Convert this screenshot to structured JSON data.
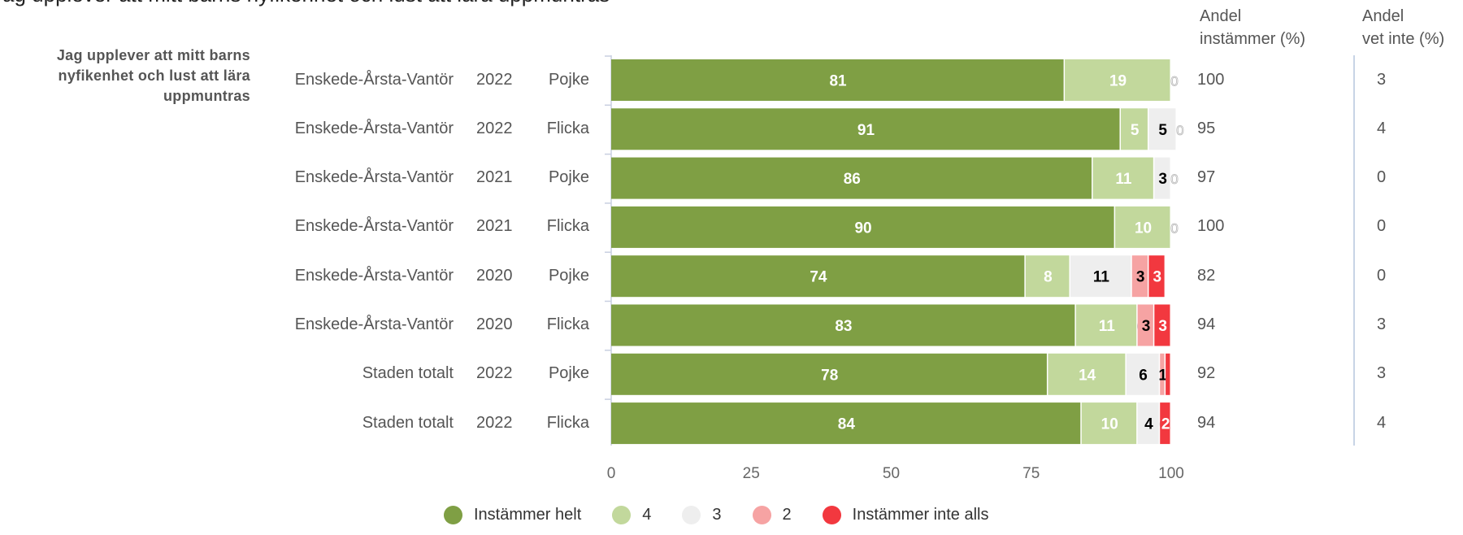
{
  "title": "Jag upplever att mitt barns nyfikenhet och lust att lära uppmuntras",
  "question_label": "Jag upplever att mitt barns nyfikenhet och lust att lära uppmuntras",
  "headers": {
    "andel_instammer": [
      "Andel",
      "instämmer (%)"
    ],
    "andel_vet_inte": [
      "Andel",
      "vet inte (%)"
    ]
  },
  "colors": {
    "instammer_helt": "#7f9f44",
    "4": "#c2d89c",
    "3": "#eeeeee",
    "2": "#f6a3a3",
    "instammer_inte_alls": "#f2383f"
  },
  "chart_data": {
    "type": "bar",
    "orientation": "horizontal",
    "stacked": true,
    "xlim": [
      0,
      100
    ],
    "xticks": [
      "0",
      "25",
      "50",
      "75",
      "100"
    ],
    "legend_position": "bottom",
    "series_names": [
      "Instämmer helt",
      "4",
      "3",
      "2",
      "Instämmer inte alls"
    ],
    "rows": [
      {
        "area": "Enskede-Årsta-Vantör",
        "year": "2022",
        "gender": "Pojke",
        "values": [
          81,
          19,
          0,
          0,
          0
        ],
        "labels": [
          "81",
          "19",
          "0",
          "",
          ""
        ],
        "andel_instammer": "100",
        "andel_vet_inte": "3"
      },
      {
        "area": "Enskede-Årsta-Vantör",
        "year": "2022",
        "gender": "Flicka",
        "values": [
          91,
          5,
          5,
          0,
          0
        ],
        "labels": [
          "91",
          "5",
          "5",
          "0",
          ""
        ],
        "andel_instammer": "95",
        "andel_vet_inte": "4"
      },
      {
        "area": "Enskede-Årsta-Vantör",
        "year": "2021",
        "gender": "Pojke",
        "values": [
          86,
          11,
          3,
          0,
          0
        ],
        "labels": [
          "86",
          "11",
          "3",
          "0",
          ""
        ],
        "andel_instammer": "97",
        "andel_vet_inte": "0"
      },
      {
        "area": "Enskede-Årsta-Vantör",
        "year": "2021",
        "gender": "Flicka",
        "values": [
          90,
          10,
          0,
          0,
          0
        ],
        "labels": [
          "90",
          "10",
          "0",
          "",
          ""
        ],
        "andel_instammer": "100",
        "andel_vet_inte": "0"
      },
      {
        "area": "Enskede-Årsta-Vantör",
        "year": "2020",
        "gender": "Pojke",
        "values": [
          74,
          8,
          11,
          3,
          3
        ],
        "labels": [
          "74",
          "8",
          "11",
          "3",
          "3"
        ],
        "andel_instammer": "82",
        "andel_vet_inte": "0"
      },
      {
        "area": "Enskede-Årsta-Vantör",
        "year": "2020",
        "gender": "Flicka",
        "values": [
          83,
          11,
          0,
          3,
          3
        ],
        "labels": [
          "83",
          "11",
          "0",
          "3",
          "3"
        ],
        "andel_instammer": "94",
        "andel_vet_inte": "3"
      },
      {
        "area": "Staden totalt",
        "year": "2022",
        "gender": "Pojke",
        "values": [
          78,
          14,
          6,
          1,
          1
        ],
        "labels": [
          "78",
          "14",
          "6",
          "1",
          ""
        ],
        "andel_instammer": "92",
        "andel_vet_inte": "3"
      },
      {
        "area": "Staden totalt",
        "year": "2022",
        "gender": "Flicka",
        "values": [
          84,
          10,
          4,
          0,
          2
        ],
        "labels": [
          "84",
          "10",
          "4",
          "0",
          "2"
        ],
        "andel_instammer": "94",
        "andel_vet_inte": "4"
      }
    ]
  },
  "legend": [
    {
      "label": "Instämmer helt",
      "color": "#7f9f44"
    },
    {
      "label": "4",
      "color": "#c2d89c"
    },
    {
      "label": "3",
      "color": "#eeeeee"
    },
    {
      "label": "2",
      "color": "#f6a3a3"
    },
    {
      "label": "Instämmer inte alls",
      "color": "#f2383f"
    }
  ]
}
